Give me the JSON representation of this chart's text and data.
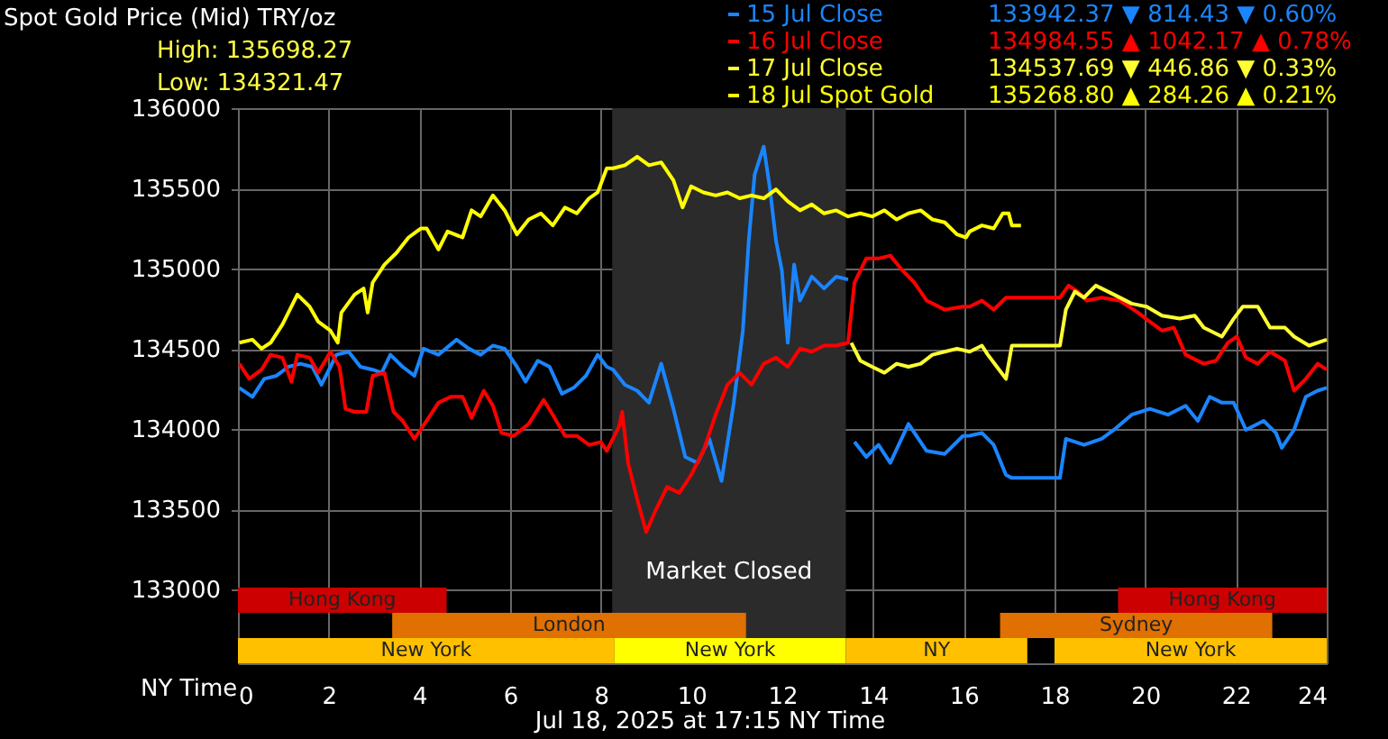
{
  "chart_data": {
    "type": "line",
    "title": "Spot Gold Price (Mid) TRY/oz",
    "xlabel": "NY Time",
    "annotations": [
      "High: 135698.27",
      "Low: 134321.47",
      "133942.37  ▼ 814.43  ▼ 0.60%",
      "134984.55  ▲ 1042.17  ▲ 0.78%",
      "134537.69  ▼ 446.86  ▼ 0.33%",
      "135268.80  ▲ 284.26  ▲ 0.21%",
      "Jul 18, 2025 at 17:15 NY Time"
    ],
    "xlim": [
      0,
      24
    ],
    "xticks": [
      0,
      2,
      4,
      6,
      8,
      10,
      12,
      14,
      16,
      18,
      20,
      22,
      24
    ],
    "ylim": [
      132540,
      136000
    ],
    "yticks": [
      133000,
      133500,
      134000,
      134500,
      135000,
      135500,
      136000
    ],
    "grid": true,
    "legend": "top right",
    "line_style": "solid",
    "marker": "none",
    "bands": [
      {
        "axis": "x",
        "from": 8.25,
        "to": 13.4,
        "label": "Market Closed",
        "color": "#2b2b2b"
      },
      {
        "axis": "x",
        "from": 0,
        "to": 4.6,
        "label": "Hong Kong",
        "color": "#cc0000"
      },
      {
        "axis": "x",
        "from": 19.4,
        "to": 24,
        "label": "Hong Kong",
        "color": "#cc0000"
      },
      {
        "axis": "x",
        "from": 3.4,
        "to": 11.2,
        "label": "London",
        "color": "#e07000"
      },
      {
        "axis": "x",
        "from": 16.8,
        "to": 22.8,
        "label": "Sydney",
        "color": "#e07000"
      },
      {
        "axis": "x",
        "from": 0,
        "to": 8.3,
        "label": "New York",
        "color": "#ffc000"
      },
      {
        "axis": "x",
        "from": 8.3,
        "to": 13.4,
        "label": "New York",
        "color": "#ffff00"
      },
      {
        "axis": "x",
        "from": 13.4,
        "to": 17.4,
        "label": "NY",
        "color": "#ffc000"
      },
      {
        "axis": "x",
        "from": 18,
        "to": 24,
        "label": "New York",
        "color": "#ffc000"
      }
    ],
    "series": [
      {
        "name": "15 Jul Close",
        "color": "#1a85ff",
        "x": [
          0.03,
          0.32,
          0.58,
          0.85,
          1.11,
          1.38,
          1.64,
          1.84,
          2.04,
          2.17,
          2.44,
          2.7,
          2.97,
          3.17,
          3.36,
          3.63,
          3.89,
          4.09,
          4.42,
          4.82,
          5.09,
          5.35,
          5.62,
          5.88,
          6.15,
          6.34,
          6.61,
          6.87,
          7.14,
          7.4,
          7.67,
          7.93,
          8.13,
          8.27,
          8.53,
          8.8,
          9.06,
          9.33,
          9.6,
          9.86,
          10.13,
          10.39,
          10.66,
          10.93,
          11.13,
          11.26,
          11.39,
          11.59,
          11.72,
          11.86,
          11.99,
          12.12,
          12.26,
          12.39,
          12.65,
          12.92,
          13.19,
          13.45,
          13.52,
          13.59,
          13.85,
          14.12,
          14.38,
          14.78,
          15.18,
          15.58,
          15.98,
          16.13,
          16.4,
          16.66,
          16.93,
          17.06,
          18.12,
          18.25,
          18.65,
          19.04,
          19.31,
          19.7,
          20.1,
          20.5,
          20.89,
          21.16,
          21.42,
          21.69,
          21.95,
          22.22,
          22.61,
          22.88,
          23.01,
          23.28,
          23.54,
          23.8,
          24.0
        ],
        "values": [
          134257,
          134201,
          134313,
          134332,
          134388,
          134407,
          134388,
          134276,
          134388,
          134463,
          134482,
          134388,
          134370,
          134351,
          134463,
          134388,
          134332,
          134501,
          134463,
          134557,
          134501,
          134463,
          134520,
          134501,
          134388,
          134295,
          134426,
          134388,
          134220,
          134257,
          134332,
          134463,
          134388,
          134370,
          134276,
          134239,
          134164,
          134407,
          134126,
          133826,
          133789,
          133939,
          133676,
          134164,
          134613,
          135175,
          135587,
          135760,
          135513,
          135175,
          134988,
          134538,
          135025,
          134801,
          134950,
          134876,
          134950,
          134932,
          null,
          133920,
          133826,
          133901,
          133789,
          134032,
          133864,
          133845,
          133957,
          133958,
          133976,
          133901,
          133714,
          133695,
          133695,
          133939,
          133901,
          133939,
          133995,
          134089,
          134126,
          134089,
          134145,
          134051,
          134201,
          134164,
          134164,
          133995,
          134051,
          133976,
          133883,
          133995,
          134201,
          134239,
          134257
        ]
      },
      {
        "name": "16 Jul Close",
        "color": "#ff0000",
        "x": [
          0.03,
          0.25,
          0.52,
          0.72,
          0.98,
          1.18,
          1.31,
          1.58,
          1.77,
          2.04,
          2.24,
          2.37,
          2.57,
          2.83,
          2.97,
          3.23,
          3.43,
          3.63,
          3.89,
          4.16,
          4.42,
          4.69,
          4.95,
          5.15,
          5.42,
          5.62,
          5.81,
          6.08,
          6.41,
          6.74,
          6.94,
          7.21,
          7.47,
          7.74,
          8.0,
          8.13,
          8.4,
          8.47,
          8.6,
          8.8,
          9.0,
          9.2,
          9.46,
          9.73,
          9.99,
          10.26,
          10.53,
          10.79,
          11.06,
          11.32,
          11.59,
          11.86,
          12.12,
          12.39,
          12.65,
          12.92,
          13.19,
          13.45,
          13.59,
          13.85,
          14.12,
          14.38,
          14.65,
          14.91,
          15.18,
          15.58,
          15.98,
          16.13,
          16.4,
          16.66,
          16.93,
          18.12,
          18.31,
          18.51,
          18.71,
          19.04,
          19.44,
          19.84,
          20.1,
          20.37,
          20.63,
          20.89,
          21.29,
          21.56,
          21.82,
          22.02,
          22.22,
          22.48,
          22.75,
          23.08,
          23.28,
          23.54,
          23.8,
          24.0
        ],
        "values": [
          134407,
          134313,
          134370,
          134463,
          134445,
          134295,
          134463,
          134445,
          134351,
          134482,
          134388,
          134126,
          134107,
          134107,
          134332,
          134351,
          134107,
          134051,
          133939,
          134051,
          134164,
          134201,
          134201,
          134070,
          134239,
          134145,
          133976,
          133957,
          134032,
          134182,
          134089,
          133957,
          133957,
          133901,
          133920,
          133864,
          134014,
          134107,
          133789,
          133564,
          133358,
          133489,
          133639,
          133602,
          133714,
          133864,
          134089,
          134276,
          134351,
          134276,
          134407,
          134445,
          134388,
          134501,
          134482,
          134520,
          134520,
          134538,
          134913,
          135063,
          135063,
          135081,
          134988,
          134913,
          134801,
          134744,
          134763,
          134763,
          134801,
          134744,
          134819,
          134819,
          134894,
          134857,
          134801,
          134819,
          134801,
          134726,
          134669,
          134613,
          134632,
          134463,
          134407,
          134426,
          134538,
          134576,
          134445,
          134407,
          134482,
          134426,
          134239,
          134313,
          134407,
          134370
        ]
      },
      {
        "name": "17 Jul Close",
        "color": "#ffff33",
        "x": [
          13.52,
          13.72,
          13.98,
          14.25,
          14.52,
          14.78,
          15.05,
          15.31,
          15.58,
          15.85,
          16.13,
          16.4,
          16.53,
          16.73,
          16.93,
          17.06,
          18.12,
          18.25,
          18.45,
          18.65,
          18.91,
          19.31,
          19.7,
          20.03,
          20.37,
          20.76,
          21.09,
          21.29,
          21.69,
          21.95,
          22.15,
          22.48,
          22.75,
          23.08,
          23.28,
          23.61,
          24.0
        ],
        "values": [
          134538,
          134426,
          134388,
          134351,
          134407,
          134388,
          134407,
          134463,
          134482,
          134501,
          134482,
          134520,
          134463,
          134388,
          134313,
          134520,
          134520,
          134744,
          134857,
          134819,
          134894,
          134838,
          134782,
          134763,
          134707,
          134688,
          134707,
          134632,
          134576,
          134688,
          134763,
          134763,
          134632,
          134632,
          134576,
          134520,
          134557
        ]
      },
      {
        "name": "18 Jul Spot Gold",
        "color": "#ffff00",
        "x": [
          0.03,
          0.32,
          0.52,
          0.72,
          0.98,
          1.31,
          1.58,
          1.77,
          2.04,
          2.2,
          2.28,
          2.57,
          2.77,
          2.86,
          2.97,
          3.23,
          3.5,
          3.76,
          4.03,
          4.16,
          4.42,
          4.62,
          4.95,
          5.15,
          5.35,
          5.62,
          5.88,
          6.15,
          6.41,
          6.68,
          6.94,
          7.21,
          7.47,
          7.74,
          7.93,
          8.13,
          8.27,
          8.53,
          8.8,
          9.06,
          9.33,
          9.6,
          9.8,
          9.99,
          10.26,
          10.53,
          10.79,
          11.06,
          11.32,
          11.59,
          11.86,
          12.12,
          12.39,
          12.65,
          12.92,
          13.19,
          13.45,
          13.72,
          13.98,
          14.25,
          14.52,
          14.78,
          15.05,
          15.31,
          15.58,
          15.85,
          16.05,
          16.13,
          16.4,
          16.66,
          16.86,
          16.99,
          17.06,
          17.26
        ],
        "values": [
          134538,
          134557,
          134501,
          134538,
          134651,
          134838,
          134763,
          134669,
          134613,
          134538,
          134726,
          134838,
          134876,
          134726,
          134913,
          135025,
          135100,
          135194,
          135250,
          135250,
          135119,
          135231,
          135194,
          135363,
          135325,
          135456,
          135363,
          135213,
          135306,
          135344,
          135269,
          135381,
          135344,
          135438,
          135475,
          135625,
          135625,
          135644,
          135698,
          135644,
          135662,
          135550,
          135381,
          135513,
          135475,
          135456,
          135475,
          135438,
          135456,
          135438,
          135494,
          135419,
          135363,
          135400,
          135344,
          135363,
          135325,
          135344,
          135325,
          135363,
          135306,
          135344,
          135363,
          135306,
          135288,
          135213,
          135194,
          135231,
          135269,
          135250,
          135344,
          135344,
          135269,
          135269
        ]
      }
    ]
  }
}
